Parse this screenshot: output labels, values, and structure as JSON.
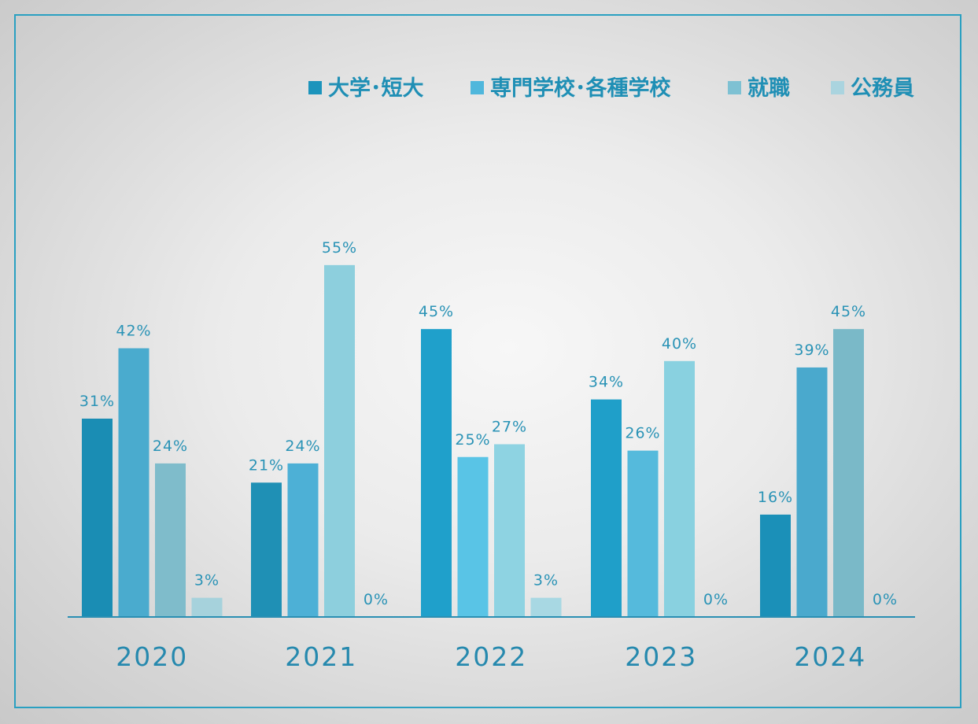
{
  "chart_data": {
    "type": "bar",
    "title": "",
    "xlabel": "",
    "ylabel": "",
    "ylim": [
      0,
      60
    ],
    "grid": false,
    "legend_position": "top-right",
    "categories": [
      "2020",
      "2021",
      "2022",
      "2023",
      "2024"
    ],
    "series": [
      {
        "name": "大学･短大",
        "values": [
          31,
          21,
          45,
          34,
          16
        ],
        "labels": [
          "31%",
          "21%",
          "45%",
          "34%",
          "16%"
        ]
      },
      {
        "name": "専門学校･各種学校",
        "values": [
          42,
          24,
          25,
          26,
          39
        ],
        "labels": [
          "42%",
          "24%",
          "25%",
          "26%",
          "39%"
        ]
      },
      {
        "name": "就職",
        "values": [
          24,
          55,
          27,
          40,
          45
        ],
        "labels": [
          "24%",
          "55%",
          "27%",
          "40%",
          "45%"
        ]
      },
      {
        "name": "公務員",
        "values": [
          3,
          0,
          3,
          0,
          0
        ],
        "labels": [
          "3%",
          "0%",
          "3%",
          "0%",
          "0%"
        ]
      }
    ],
    "colors": {
      "series": [
        "#1c94bc",
        "#4fb7dc",
        "#7ec1d3",
        "#aad4df"
      ],
      "varied_bars": [
        [
          "#1a8db4",
          "#4aabce",
          "#7fbccb",
          "#a6d2dc"
        ],
        [
          "#1f90b5",
          "#4db0d6",
          "#8dcfdd",
          "#a6d2dc"
        ],
        [
          "#1fa0cb",
          "#59c4e6",
          "#8ed3e2",
          "#a8d8e3"
        ],
        [
          "#1f9fc9",
          "#55badc",
          "#89d1e0",
          "#a8d8e3"
        ],
        [
          "#1b90b8",
          "#4aa9cd",
          "#7ab9c8",
          "#a8d8e3"
        ]
      ],
      "axis": "#2a8fb3",
      "frame": "#2aa0c1",
      "text": "#2a93b6"
    }
  }
}
